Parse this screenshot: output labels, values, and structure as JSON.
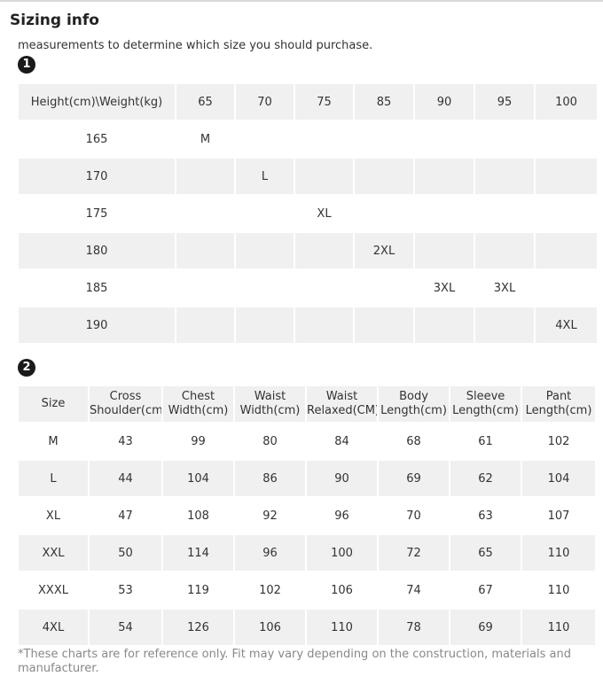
{
  "title": "Sizing info",
  "intro": "measurements to determine which size you should purchase.",
  "section1": {
    "badge": "1",
    "headers": [
      "Height(cm)\\Weight(kg)",
      "65",
      "70",
      "75",
      "85",
      "90",
      "95",
      "100"
    ],
    "rows": [
      [
        "165",
        "M",
        "",
        "",
        "",
        "",
        "",
        ""
      ],
      [
        "170",
        "",
        "L",
        "",
        "",
        "",
        "",
        ""
      ],
      [
        "175",
        "",
        "",
        "XL",
        "",
        "",
        "",
        ""
      ],
      [
        "180",
        "",
        "",
        "",
        "2XL",
        "",
        "",
        ""
      ],
      [
        "185",
        "",
        "",
        "",
        "",
        "3XL",
        "3XL",
        ""
      ],
      [
        "190",
        "",
        "",
        "",
        "",
        "",
        "",
        "4XL"
      ]
    ]
  },
  "section2": {
    "badge": "2",
    "headers": [
      [
        "Size"
      ],
      [
        "Cross",
        "Shoulder(cm)"
      ],
      [
        "Chest",
        "Width(cm)"
      ],
      [
        "Waist",
        "Width(cm)"
      ],
      [
        "Waist",
        "Relaxed(CM)"
      ],
      [
        "Body",
        "Length(cm)"
      ],
      [
        "Sleeve",
        "Length(cm)"
      ],
      [
        "Pant",
        "Length(cm)"
      ]
    ],
    "rows": [
      [
        "M",
        "43",
        "99",
        "80",
        "84",
        "68",
        "61",
        "102"
      ],
      [
        "L",
        "44",
        "104",
        "86",
        "90",
        "69",
        "62",
        "104"
      ],
      [
        "XL",
        "47",
        "108",
        "92",
        "96",
        "70",
        "63",
        "107"
      ],
      [
        "XXL",
        "50",
        "114",
        "96",
        "100",
        "72",
        "65",
        "110"
      ],
      [
        "XXXL",
        "53",
        "119",
        "102",
        "106",
        "74",
        "67",
        "110"
      ],
      [
        "4XL",
        "54",
        "126",
        "106",
        "110",
        "78",
        "69",
        "110"
      ]
    ]
  },
  "footnote": "*These charts are for reference only. Fit may vary depending on the construction, materials and manufacturer."
}
